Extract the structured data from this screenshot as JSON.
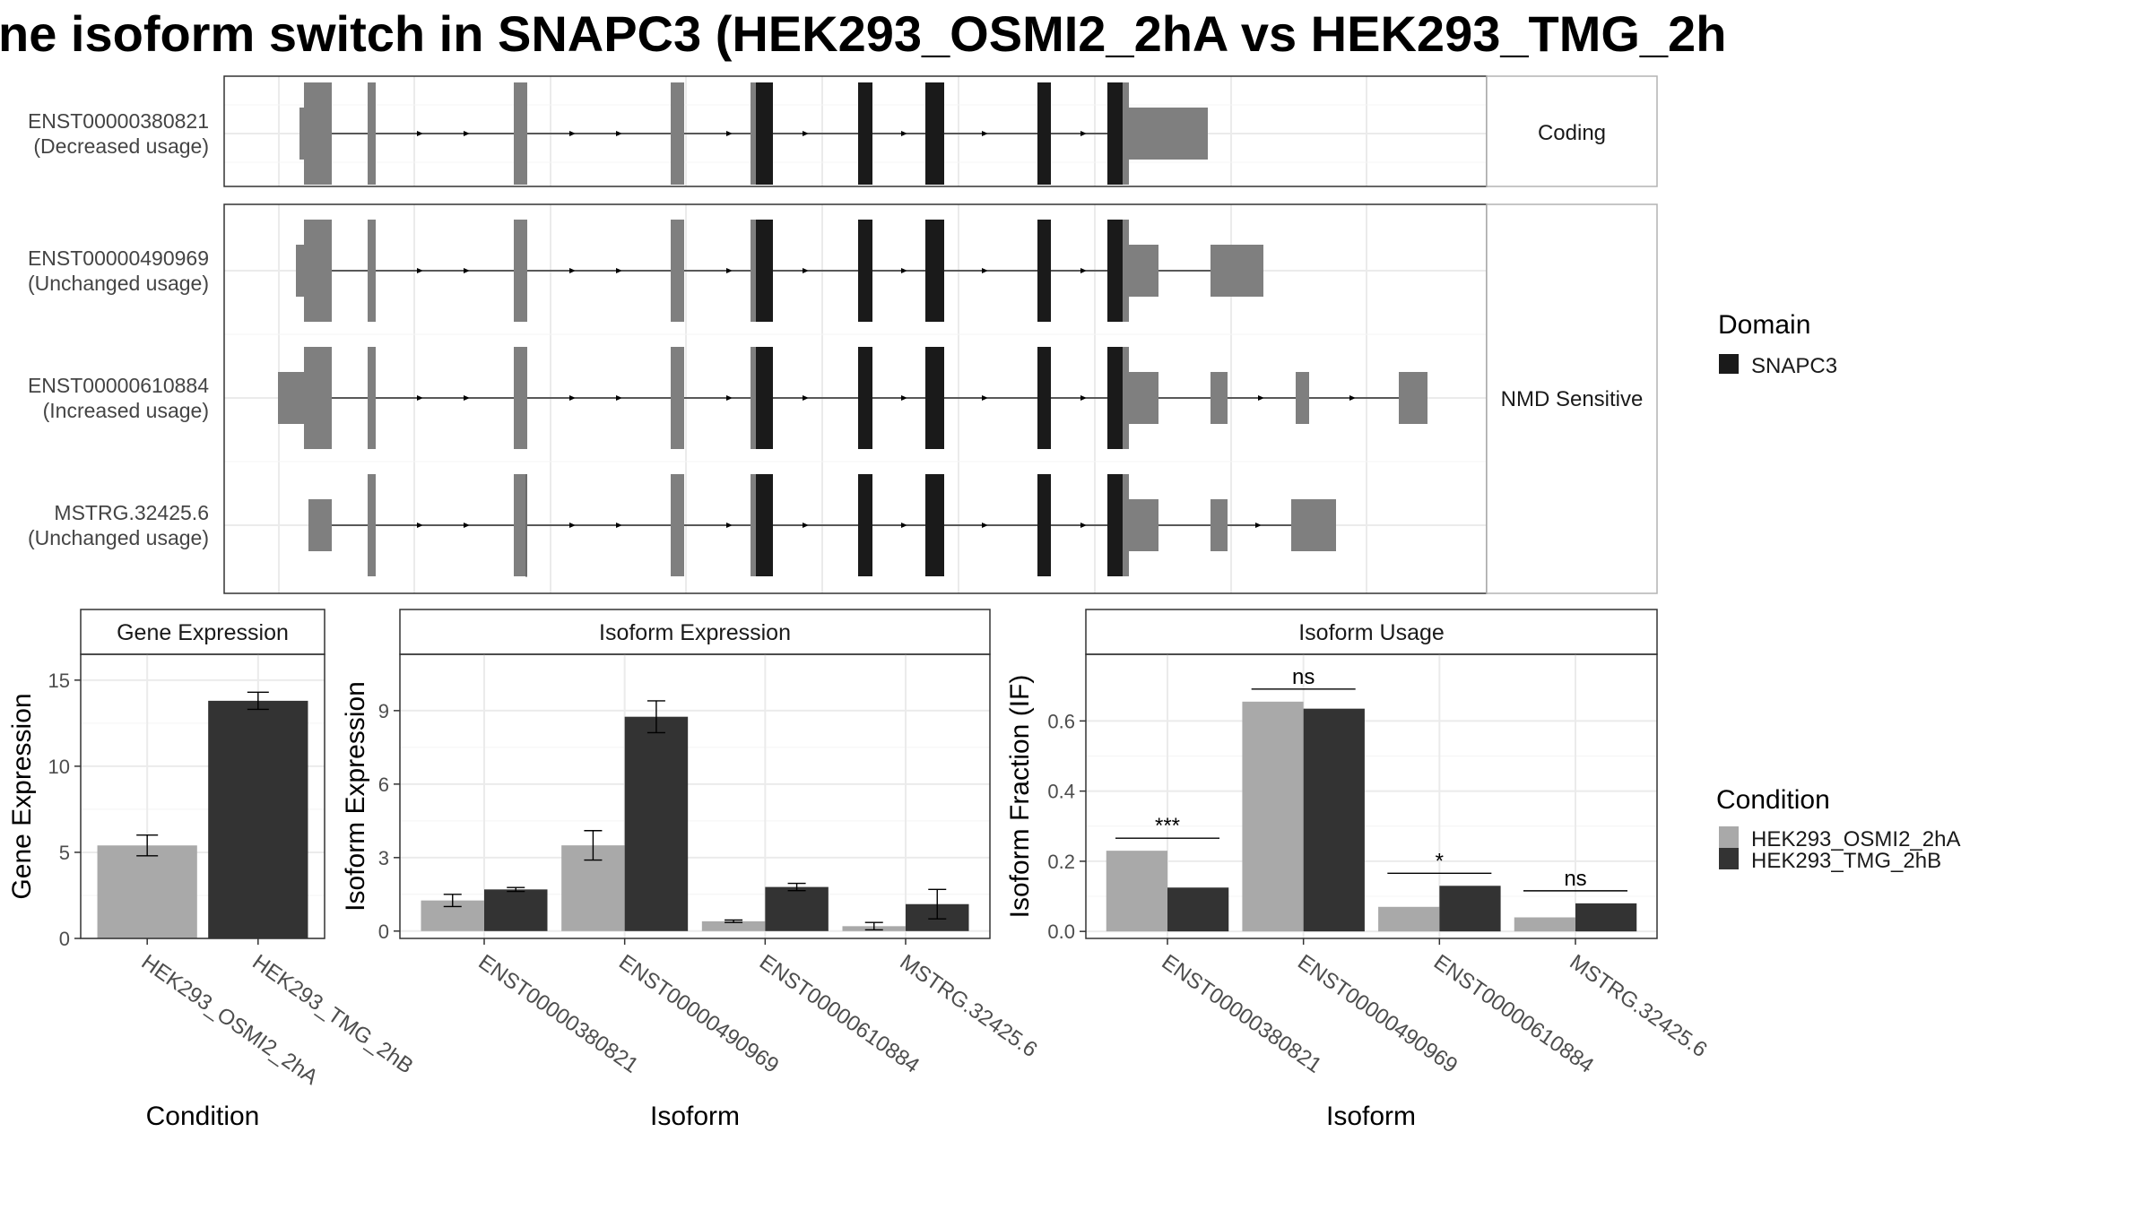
{
  "title": "ne isoform switch in SNAPC3 (HEK293_OSMI2_2hA vs HEK293_TMG_2h",
  "colors": {
    "exon_utr": "#7f7f7f",
    "exon_domain": "#1a1a1a",
    "condition_a": "#a9a9a9",
    "condition_b": "#333333",
    "grid": "#ebebeb",
    "strip_border": "#b3b3b3",
    "panel_border": "#333333"
  },
  "transcripts": [
    {
      "id": "ENST00000380821",
      "usage": "(Decreased usage)",
      "group": "Coding"
    },
    {
      "id": "ENST00000490969",
      "usage": "(Unchanged usage)",
      "group": "NMD Sensitive"
    },
    {
      "id": "ENST00000610884",
      "usage": "(Increased usage)",
      "group": "NMD Sensitive"
    },
    {
      "id": "MSTRG.32425.6",
      "usage": "(Unchanged usage)",
      "group": "NMD Sensitive"
    }
  ],
  "facet_labels": {
    "coding": "Coding",
    "nmd": "NMD Sensitive"
  },
  "domain_legend": {
    "title": "Domain",
    "items": [
      "SNAPC3"
    ]
  },
  "condition_legend": {
    "title": "Condition",
    "items": [
      "HEK293_OSMI2_2hA",
      "HEK293_TMG_2hB"
    ]
  },
  "chart_data": [
    {
      "type": "bar",
      "title": "Gene Expression",
      "xlabel": "Condition",
      "ylabel": "Gene Expression",
      "ylim": [
        0,
        16.5
      ],
      "yticks": [
        0,
        5,
        10,
        15
      ],
      "categories": [
        "HEK293_OSMI2_2hA",
        "HEK293_TMG_2hB"
      ],
      "values": [
        5.4,
        13.8
      ],
      "errors": [
        [
          4.8,
          6.0
        ],
        [
          13.3,
          14.3
        ]
      ]
    },
    {
      "type": "bar",
      "title": "Isoform Expression",
      "xlabel": "Isoform",
      "ylabel": "Isoform Expression",
      "ylim": [
        -0.3,
        11.3
      ],
      "yticks": [
        0,
        3,
        6,
        9
      ],
      "categories": [
        "ENST00000380821",
        "ENST00000490969",
        "ENST00000610884",
        "MSTRG.32425.6"
      ],
      "series": [
        {
          "name": "HEK293_OSMI2_2hA",
          "values": [
            1.25,
            3.5,
            0.4,
            0.2
          ],
          "errors": [
            [
              1.0,
              1.5
            ],
            [
              2.9,
              4.1
            ],
            [
              0.35,
              0.45
            ],
            [
              0.05,
              0.35
            ]
          ]
        },
        {
          "name": "HEK293_TMG_2hB",
          "values": [
            1.7,
            8.75,
            1.8,
            1.1
          ],
          "errors": [
            [
              1.62,
              1.78
            ],
            [
              8.1,
              9.4
            ],
            [
              1.65,
              1.95
            ],
            [
              0.5,
              1.7
            ]
          ]
        }
      ]
    },
    {
      "type": "bar",
      "title": "Isoform Usage",
      "xlabel": "Isoform",
      "ylabel": "Isoform Fraction (IF)",
      "ylim": [
        -0.02,
        0.79
      ],
      "yticks": [
        0.0,
        0.2,
        0.4,
        0.6
      ],
      "ytick_labels": [
        "0.0",
        "0.2",
        "0.4",
        "0.6"
      ],
      "categories": [
        "ENST00000380821",
        "ENST00000490969",
        "ENST00000610884",
        "MSTRG.32425.6"
      ],
      "series": [
        {
          "name": "HEK293_OSMI2_2hA",
          "values": [
            0.23,
            0.655,
            0.07,
            0.04
          ]
        },
        {
          "name": "HEK293_TMG_2hB",
          "values": [
            0.125,
            0.635,
            0.13,
            0.08
          ]
        }
      ],
      "significance": [
        "***",
        "ns",
        "*",
        "ns"
      ]
    }
  ]
}
